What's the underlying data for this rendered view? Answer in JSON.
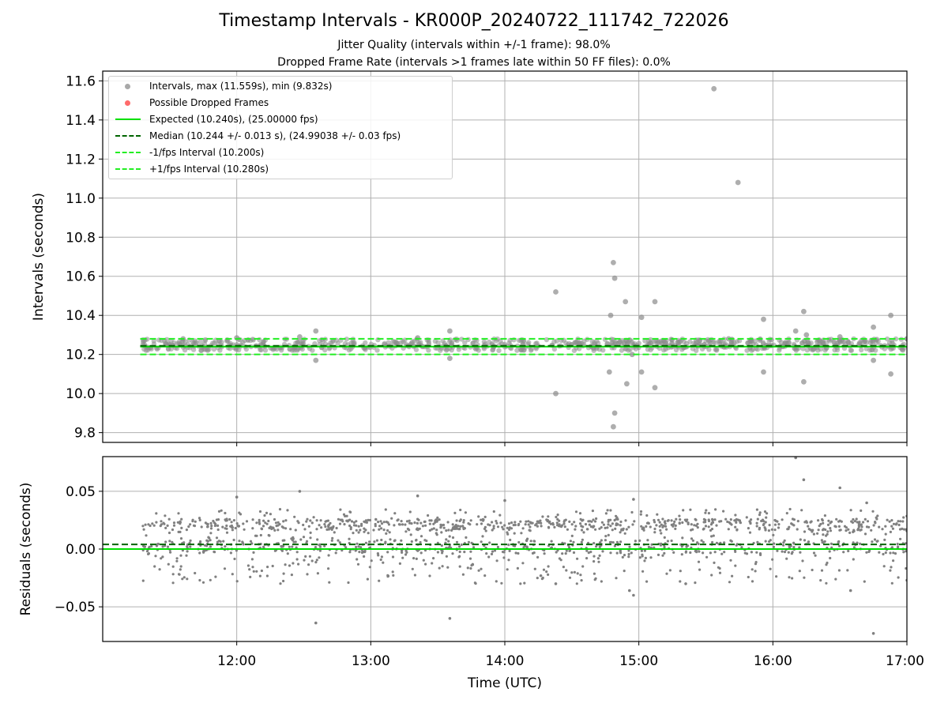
{
  "header": {
    "title": "Timestamp Intervals - KR000P_20240722_111742_722026",
    "subtitle1": "Jitter Quality (intervals within +/-1 frame): 98.0%",
    "subtitle2": "Dropped Frame Rate (intervals >1 frames late within 50 FF files): 0.0%"
  },
  "colors": {
    "points": "#808080",
    "dropped": "#ff4d4d",
    "expected": "#00e000",
    "median": "#006400",
    "interval": "#22ee22",
    "grid": "#b0b0b0"
  },
  "legend": {
    "intervals": "Intervals, max (11.559s), min (9.832s)",
    "dropped": "Possible Dropped Frames",
    "expected": "Expected (10.240s), (25.00000 fps)",
    "median": "Median (10.244 +/- 0.013 s), (24.99038 +/- 0.03 fps)",
    "minus": "-1/fps Interval (10.200s)",
    "plus": "+1/fps Interval (10.280s)"
  },
  "chart_data": [
    {
      "type": "scatter",
      "panel": "Intervals",
      "xlabel": "",
      "ylabel": "Intervals (seconds)",
      "x_ticks": [
        "12:00",
        "13:00",
        "14:00",
        "15:00",
        "16:00",
        "17:00"
      ],
      "y_ticks": [
        "9.8",
        "10.0",
        "10.2",
        "10.4",
        "10.6",
        "10.8",
        "11.0",
        "11.2",
        "11.4",
        "11.6"
      ],
      "xlim_hours": [
        11.0,
        17.0
      ],
      "ylim": [
        9.75,
        11.65
      ],
      "grid": true,
      "legend_position": "upper-left",
      "x_range_of_points_hours": [
        11.3,
        17.0
      ],
      "reference_lines": {
        "expected": 10.24,
        "median": 10.244,
        "minus_1_fps": 10.2,
        "plus_1_fps": 10.28
      },
      "typical_band": [
        10.22,
        10.28
      ],
      "outliers": [
        {
          "t": 11.6,
          "v": 10.28
        },
        {
          "t": 12.0,
          "v": 10.285
        },
        {
          "t": 12.47,
          "v": 10.29
        },
        {
          "t": 12.59,
          "v": 10.32
        },
        {
          "t": 12.59,
          "v": 10.17
        },
        {
          "t": 13.35,
          "v": 10.285
        },
        {
          "t": 13.59,
          "v": 10.32
        },
        {
          "t": 13.59,
          "v": 10.18
        },
        {
          "t": 14.38,
          "v": 10.52
        },
        {
          "t": 14.38,
          "v": 10.0
        },
        {
          "t": 14.79,
          "v": 10.4
        },
        {
          "t": 14.78,
          "v": 10.11
        },
        {
          "t": 14.81,
          "v": 10.67
        },
        {
          "t": 14.82,
          "v": 10.59
        },
        {
          "t": 14.82,
          "v": 9.9
        },
        {
          "t": 14.81,
          "v": 9.83
        },
        {
          "t": 14.9,
          "v": 10.47
        },
        {
          "t": 14.91,
          "v": 10.05
        },
        {
          "t": 14.95,
          "v": 10.2
        },
        {
          "t": 15.02,
          "v": 10.39
        },
        {
          "t": 15.02,
          "v": 10.11
        },
        {
          "t": 15.12,
          "v": 10.47
        },
        {
          "t": 15.12,
          "v": 10.03
        },
        {
          "t": 15.56,
          "v": 11.56
        },
        {
          "t": 15.67,
          "v": 10.28
        },
        {
          "t": 15.74,
          "v": 11.08
        },
        {
          "t": 15.93,
          "v": 10.38
        },
        {
          "t": 15.93,
          "v": 10.11
        },
        {
          "t": 16.17,
          "v": 10.32
        },
        {
          "t": 16.23,
          "v": 10.42
        },
        {
          "t": 16.23,
          "v": 10.06
        },
        {
          "t": 16.25,
          "v": 10.3
        },
        {
          "t": 16.5,
          "v": 10.29
        },
        {
          "t": 16.75,
          "v": 10.34
        },
        {
          "t": 16.75,
          "v": 10.17
        },
        {
          "t": 16.88,
          "v": 10.4
        },
        {
          "t": 16.88,
          "v": 10.1
        },
        {
          "t": 17.0,
          "v": 10.28
        }
      ]
    },
    {
      "type": "scatter",
      "panel": "Residuals",
      "xlabel": "Time (UTC)",
      "ylabel": "Residuals (seconds)",
      "x_ticks": [
        "12:00",
        "13:00",
        "14:00",
        "15:00",
        "16:00",
        "17:00"
      ],
      "y_ticks": [
        "0.05",
        "0.00",
        "−0.05"
      ],
      "xlim_hours": [
        11.0,
        17.0
      ],
      "ylim": [
        -0.08,
        0.08
      ],
      "grid": true,
      "reference_lines": {
        "expected": 0.0,
        "median": 0.004
      },
      "typical_band": [
        -0.03,
        0.035
      ],
      "outliers": [
        {
          "t": 12.0,
          "v": 0.045
        },
        {
          "t": 12.47,
          "v": 0.05
        },
        {
          "t": 12.59,
          "v": -0.064
        },
        {
          "t": 13.35,
          "v": 0.046
        },
        {
          "t": 13.59,
          "v": -0.06
        },
        {
          "t": 14.0,
          "v": 0.042
        },
        {
          "t": 14.38,
          "v": -0.03
        },
        {
          "t": 14.93,
          "v": -0.036
        },
        {
          "t": 14.96,
          "v": -0.04
        },
        {
          "t": 14.96,
          "v": 0.043
        },
        {
          "t": 15.35,
          "v": -0.03
        },
        {
          "t": 16.17,
          "v": 0.079
        },
        {
          "t": 16.23,
          "v": 0.06
        },
        {
          "t": 16.5,
          "v": 0.053
        },
        {
          "t": 16.75,
          "v": -0.073
        },
        {
          "t": 16.58,
          "v": -0.036
        },
        {
          "t": 16.7,
          "v": 0.04
        },
        {
          "t": 17.0,
          "v": -0.027
        }
      ]
    }
  ]
}
